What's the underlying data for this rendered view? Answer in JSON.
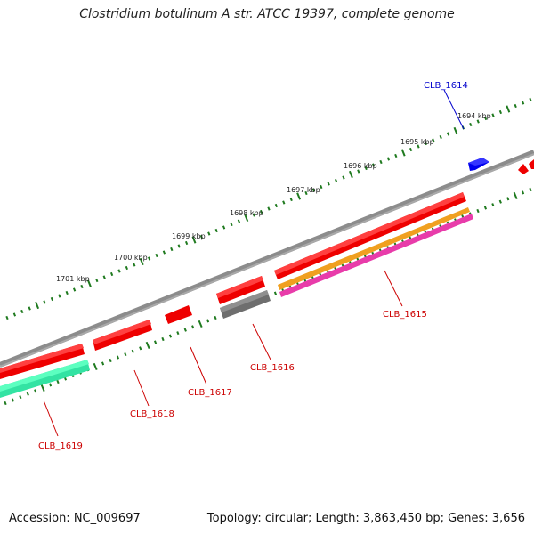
{
  "title": "Clostridium botulinum A str. ATCC 19397, complete genome",
  "footer": {
    "accession": "Accession: NC_009697",
    "info": "Topology: circular; Length: 3,863,450 bp; Genes: 3,656"
  },
  "colors": {
    "backbone": "#8c8c8c",
    "tick": "#1f7a1f",
    "cds": "#ee0000",
    "cds_dark": "#cc0000",
    "orange": "#f0a020",
    "magenta": "#e83caa",
    "green": "#33e3a3",
    "gray": "#6e6e6e",
    "blue": "#0000ee",
    "label_red": "#cc0000",
    "label_blue": "#0000cc"
  },
  "kbp_labels": [
    "1694 kbp",
    "1695 kbp",
    "1696 kbp",
    "1697 kbp",
    "1698 kbp",
    "1699 kbp",
    "1700 kbp",
    "1701 kbp"
  ],
  "gene_labels": [
    {
      "name": "CLB_1614",
      "strand": "forward",
      "color": "blue"
    },
    {
      "name": "CLB_1615",
      "strand": "reverse",
      "color": "red"
    },
    {
      "name": "CLB_1616",
      "strand": "reverse",
      "color": "red"
    },
    {
      "name": "CLB_1617",
      "strand": "reverse",
      "color": "red"
    },
    {
      "name": "CLB_1618",
      "strand": "reverse",
      "color": "red"
    },
    {
      "name": "CLB_1619",
      "strand": "reverse",
      "color": "red"
    }
  ]
}
